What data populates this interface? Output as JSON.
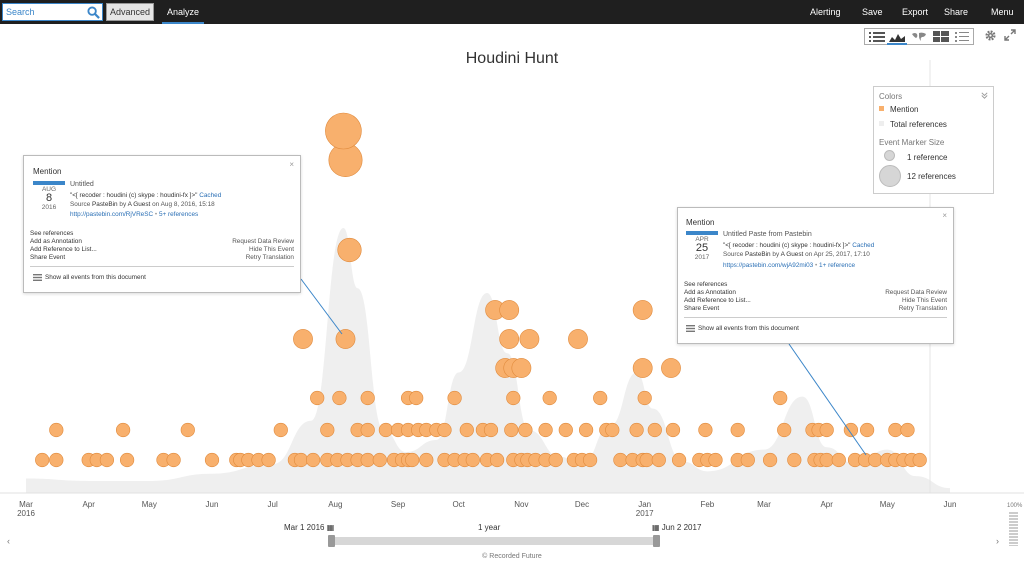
{
  "toolbar": {
    "search_placeholder": "Search",
    "advanced_label": "Advanced",
    "analyze_label": "Analyze",
    "nav": [
      "Alerting",
      "Save",
      "Export",
      "Share",
      "Menu"
    ]
  },
  "title": "Houdini Hunt",
  "view_icons": [
    "list-view-icon",
    "timeline-view-icon",
    "map-view-icon",
    "table-view-icon",
    "detail-list-icon"
  ],
  "accent_color": "#3b86c9",
  "legend": {
    "colors_label": "Colors",
    "items": [
      "Mention",
      "Total references"
    ],
    "size_label": "Event Marker Size",
    "size_items": [
      "1 reference",
      "12 references"
    ]
  },
  "card1": {
    "title": "Mention",
    "doc_title": "Untitled",
    "month": "AUG",
    "day": "8",
    "year": "2016",
    "quote": "\"<[ recoder : houdini (c) skype : houdini-fx ]>\"",
    "cached": "Cached",
    "source_prefix": "Source",
    "source": "PasteBin",
    "by_prefix": "by",
    "author": "A Guest",
    "on_prefix": "on",
    "date": "Aug 8, 2016, 15:18",
    "url": "http://pastebin.com/RjVReSC",
    "refs": "5+ references",
    "actions_left": [
      "See references",
      "Add as Annotation",
      "Add Reference to List...",
      "Share Event"
    ],
    "actions_right": [
      "Request Data Review",
      "Hide This Event",
      "Retry Translation"
    ],
    "show_all": "Show all events from this document"
  },
  "card2": {
    "title": "Mention",
    "doc_title": "Untitled Paste from Pastebin",
    "month": "APR",
    "day": "25",
    "year": "2017",
    "quote": "\"<[ recoder : houdini (c) skype : houdini-fx ]>\"",
    "cached": "Cached",
    "source_prefix": "Source",
    "source": "PasteBin",
    "by_prefix": "by",
    "author": "A Guest",
    "on_prefix": "on",
    "date": "Apr 25, 2017, 17:10",
    "url": "https://pastebin.com/wjA92mi03",
    "refs": "1+ reference",
    "actions_left": [
      "See references",
      "Add as Annotation",
      "Add Reference to List...",
      "Share Event"
    ],
    "actions_right": [
      "Request Data Review",
      "Hide This Event",
      "Retry Translation"
    ],
    "show_all": "Show all events from this document"
  },
  "timeline": {
    "range_from": "Mar 1 2016",
    "range_label": "1 year",
    "range_to": "Jun 2 2017",
    "zoom": "100%",
    "copyright": "© Recorded Future"
  },
  "chart_data": {
    "type": "scatter",
    "title": "Houdini Hunt",
    "x_ticks": [
      {
        "label": "Mar",
        "year": "2016"
      },
      {
        "label": "Apr"
      },
      {
        "label": "May"
      },
      {
        "label": "Jun"
      },
      {
        "label": "Jul"
      },
      {
        "label": "Aug"
      },
      {
        "label": "Sep"
      },
      {
        "label": "Oct"
      },
      {
        "label": "Nov"
      },
      {
        "label": "Dec"
      },
      {
        "label": "Jan",
        "year": "2017"
      },
      {
        "label": "Feb"
      },
      {
        "label": "Mar"
      },
      {
        "label": "Apr"
      },
      {
        "label": "May"
      },
      {
        "label": "Jun"
      }
    ],
    "x_range": [
      "2016-03-01",
      "2017-06-01"
    ],
    "grid": false,
    "legend_position": "top-right",
    "series": [
      {
        "name": "Total references",
        "color": "#efefef",
        "type": "area",
        "x": [
          "2016-03-01",
          "2016-04-01",
          "2016-05-01",
          "2016-06-01",
          "2016-07-01",
          "2016-07-20",
          "2016-08-05",
          "2016-08-12",
          "2016-08-25",
          "2016-09-05",
          "2016-09-20",
          "2016-10-01",
          "2016-10-15",
          "2016-10-25",
          "2016-11-05",
          "2016-11-20",
          "2016-12-01",
          "2016-12-15",
          "2016-12-28",
          "2017-01-05",
          "2017-01-20",
          "2017-02-01",
          "2017-03-01",
          "2017-03-20",
          "2017-04-01",
          "2017-04-15",
          "2017-05-01",
          "2017-05-15",
          "2017-06-01"
        ],
        "values": [
          0.6,
          0.5,
          0.5,
          0.8,
          1.2,
          3.0,
          11.0,
          8.5,
          2.6,
          1.7,
          2.2,
          5.0,
          8.3,
          5.8,
          2.6,
          1.5,
          1.2,
          2.8,
          5.0,
          3.5,
          1.3,
          0.9,
          1.8,
          4.0,
          1.9,
          1.2,
          1.8,
          0.7,
          0.2
        ]
      },
      {
        "name": "Mention",
        "color": "#f8b06d",
        "type": "scatter",
        "rows": [
          {
            "refs": 1,
            "x": [
              "2016-03-09",
              "2016-03-16",
              "2016-04-01",
              "2016-04-05",
              "2016-04-10",
              "2016-04-20",
              "2016-05-08",
              "2016-05-13",
              "2016-06-01",
              "2016-06-13",
              "2016-06-15",
              "2016-06-19",
              "2016-06-24",
              "2016-06-29",
              "2016-07-12",
              "2016-07-15",
              "2016-07-21",
              "2016-07-28",
              "2016-08-02",
              "2016-08-07",
              "2016-08-12",
              "2016-08-17",
              "2016-08-23",
              "2016-08-30",
              "2016-09-03",
              "2016-09-06",
              "2016-09-08",
              "2016-09-15",
              "2016-09-24",
              "2016-09-29",
              "2016-10-04",
              "2016-10-08",
              "2016-10-15",
              "2016-10-20",
              "2016-10-28",
              "2016-11-01",
              "2016-11-04",
              "2016-11-08",
              "2016-11-13",
              "2016-11-18",
              "2016-11-27",
              "2016-12-01",
              "2016-12-05",
              "2016-12-20",
              "2016-12-26",
              "2016-12-31",
              "2017-01-02",
              "2017-01-08",
              "2017-01-18",
              "2017-01-28",
              "2017-02-01",
              "2017-02-05",
              "2017-02-16",
              "2017-02-21",
              "2017-03-04",
              "2017-03-16",
              "2017-03-26",
              "2017-03-29",
              "2017-04-01",
              "2017-04-07",
              "2017-04-15",
              "2017-04-20",
              "2017-04-25",
              "2017-05-01",
              "2017-05-05",
              "2017-05-09",
              "2017-05-13",
              "2017-05-17"
            ]
          },
          {
            "refs": 1,
            "x": [
              "2016-03-16",
              "2016-04-18",
              "2016-05-20",
              "2016-07-05",
              "2016-07-28",
              "2016-08-12",
              "2016-08-17",
              "2016-08-26",
              "2016-09-01",
              "2016-09-06",
              "2016-09-11",
              "2016-09-15",
              "2016-09-20",
              "2016-09-24",
              "2016-10-05",
              "2016-10-13",
              "2016-10-17",
              "2016-10-27",
              "2016-11-03",
              "2016-11-13",
              "2016-11-23",
              "2016-12-03",
              "2016-12-13",
              "2016-12-16",
              "2016-12-28",
              "2017-01-06",
              "2017-01-15",
              "2017-01-31",
              "2017-02-16",
              "2017-03-11",
              "2017-03-25",
              "2017-03-28",
              "2017-04-01",
              "2017-04-13",
              "2017-04-21",
              "2017-05-05",
              "2017-05-11"
            ]
          },
          {
            "refs": 1,
            "x": [
              "2016-07-23",
              "2016-08-03",
              "2016-08-17",
              "2016-09-06",
              "2016-09-10",
              "2016-09-29",
              "2016-10-28",
              "2016-11-15",
              "2016-12-10",
              "2017-01-01",
              "2017-03-09"
            ]
          },
          {
            "refs": 2,
            "x": [
              "2016-10-24",
              "2016-10-28",
              "2016-11-01",
              "2016-12-31",
              "2017-01-14"
            ]
          },
          {
            "refs": 2,
            "x": [
              "2016-07-16",
              "2016-08-06",
              "2016-10-26",
              "2016-11-05",
              "2016-11-29"
            ]
          },
          {
            "refs": 2,
            "x": [
              "2016-10-19",
              "2016-10-26",
              "2016-12-31"
            ]
          },
          {
            "refs": 3,
            "x": [
              "2016-08-08"
            ]
          },
          {
            "refs": 6,
            "x": [
              "2016-08-06"
            ]
          },
          {
            "refs": 7,
            "x": [
              "2016-08-05"
            ]
          }
        ]
      }
    ]
  }
}
